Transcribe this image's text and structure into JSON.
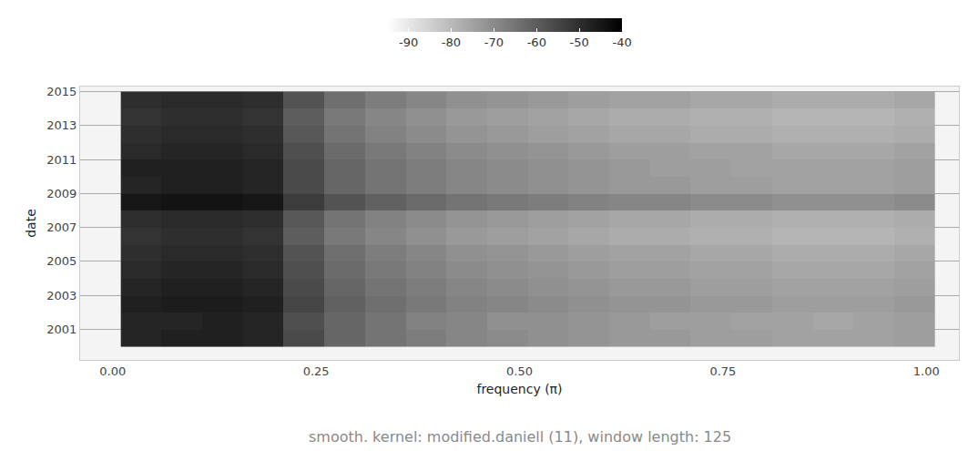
{
  "chart_data": {
    "type": "heatmap",
    "x_label": "frequency (π)",
    "y_label": "date",
    "caption": "smooth. kernel: modified.daniell (11), window length: 125",
    "x": [
      0.035,
      0.085,
      0.135,
      0.185,
      0.235,
      0.285,
      0.335,
      0.385,
      0.435,
      0.485,
      0.535,
      0.585,
      0.635,
      0.685,
      0.735,
      0.785,
      0.835,
      0.885,
      0.935,
      0.985
    ],
    "y": [
      2000.5,
      2001.5,
      2002.5,
      2003.5,
      2004.5,
      2005.5,
      2006.5,
      2007.5,
      2008.5,
      2009.5,
      2010.5,
      2011.5,
      2012.5,
      2013.5,
      2014.5
    ],
    "z": [
      [
        -48,
        -47,
        -47,
        -48,
        -56,
        -62,
        -65,
        -67,
        -69,
        -70,
        -71,
        -72,
        -73,
        -73,
        -74,
        -74,
        -75,
        -75,
        -75,
        -74
      ],
      [
        -48,
        -48,
        -47,
        -48,
        -57,
        -62,
        -65,
        -68,
        -69,
        -71,
        -71,
        -72,
        -73,
        -74,
        -74,
        -75,
        -75,
        -76,
        -75,
        -74
      ],
      [
        -47,
        -46,
        -46,
        -47,
        -55,
        -61,
        -64,
        -66,
        -68,
        -69,
        -70,
        -71,
        -72,
        -72,
        -73,
        -73,
        -74,
        -74,
        -74,
        -73
      ],
      [
        -48,
        -47,
        -47,
        -48,
        -56,
        -62,
        -65,
        -67,
        -69,
        -70,
        -71,
        -72,
        -73,
        -73,
        -74,
        -74,
        -75,
        -75,
        -75,
        -74
      ],
      [
        -49,
        -48,
        -48,
        -49,
        -57,
        -63,
        -66,
        -68,
        -70,
        -71,
        -72,
        -73,
        -74,
        -74,
        -75,
        -75,
        -76,
        -76,
        -76,
        -75
      ],
      [
        -50,
        -49,
        -49,
        -50,
        -58,
        -64,
        -67,
        -69,
        -71,
        -72,
        -73,
        -74,
        -75,
        -75,
        -76,
        -76,
        -77,
        -77,
        -77,
        -76
      ],
      [
        -51,
        -50,
        -50,
        -51,
        -60,
        -66,
        -69,
        -71,
        -73,
        -74,
        -75,
        -76,
        -77,
        -77,
        -78,
        -78,
        -79,
        -79,
        -79,
        -78
      ],
      [
        -50,
        -49,
        -49,
        -50,
        -59,
        -65,
        -68,
        -70,
        -72,
        -73,
        -74,
        -75,
        -76,
        -76,
        -77,
        -77,
        -78,
        -78,
        -78,
        -77
      ],
      [
        -45,
        -44,
        -44,
        -45,
        -53,
        -58,
        -61,
        -63,
        -65,
        -66,
        -67,
        -68,
        -69,
        -69,
        -70,
        -70,
        -71,
        -71,
        -71,
        -70
      ],
      [
        -48,
        -47,
        -47,
        -48,
        -56,
        -62,
        -65,
        -67,
        -69,
        -70,
        -71,
        -72,
        -73,
        -73,
        -74,
        -74,
        -75,
        -75,
        -75,
        -74
      ],
      [
        -47,
        -47,
        -47,
        -48,
        -56,
        -62,
        -65,
        -67,
        -69,
        -70,
        -71,
        -72,
        -73,
        -74,
        -74,
        -75,
        -75,
        -75,
        -75,
        -74
      ],
      [
        -49,
        -48,
        -48,
        -49,
        -57,
        -63,
        -66,
        -68,
        -70,
        -71,
        -72,
        -73,
        -74,
        -74,
        -75,
        -75,
        -76,
        -76,
        -76,
        -75
      ],
      [
        -50,
        -49,
        -49,
        -50,
        -59,
        -65,
        -68,
        -70,
        -72,
        -73,
        -74,
        -75,
        -76,
        -76,
        -77,
        -77,
        -78,
        -78,
        -78,
        -77
      ],
      [
        -51,
        -50,
        -50,
        -51,
        -60,
        -66,
        -69,
        -71,
        -73,
        -74,
        -75,
        -76,
        -77,
        -77,
        -78,
        -78,
        -79,
        -79,
        -79,
        -78
      ],
      [
        -50,
        -49,
        -49,
        -50,
        -58,
        -64,
        -67,
        -69,
        -71,
        -72,
        -73,
        -74,
        -75,
        -75,
        -76,
        -76,
        -77,
        -77,
        -77,
        -76
      ]
    ],
    "colors": [
      "#ffffff",
      "#000000"
    ],
    "colorbar": {
      "range": [
        -95,
        -40
      ],
      "ticks": [
        -90,
        -80,
        -70,
        -60,
        -50,
        -40
      ]
    },
    "xlim": [
      -0.04,
      1.04
    ],
    "xticks": [
      {
        "value": 0,
        "label": "0.00"
      },
      {
        "value": 0.25,
        "label": "0.25"
      },
      {
        "value": 0.5,
        "label": "0.50"
      },
      {
        "value": 0.75,
        "label": "0.75"
      },
      {
        "value": 1,
        "label": "1.00"
      }
    ],
    "ylim": [
      1999.2,
      2015.3
    ],
    "yticks": [
      2001,
      2003,
      2005,
      2007,
      2009,
      2011,
      2013,
      2015
    ],
    "grid": true
  }
}
